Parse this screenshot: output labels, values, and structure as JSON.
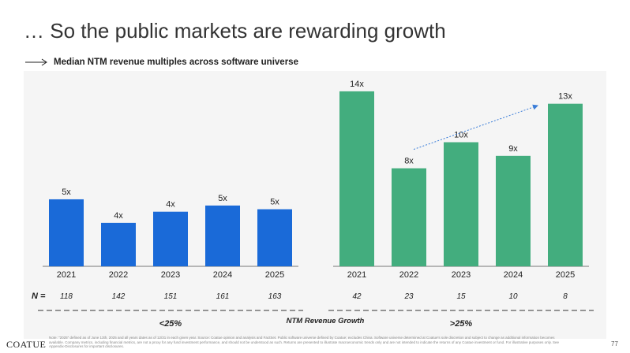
{
  "title": "… So the public markets are rewarding growth",
  "subtitle": "Median NTM revenue multiples across software universe",
  "brand": "COATUE",
  "page_number": "77",
  "footnote": "Note: \"2025\" defined as of June 13th, 2025 and all years dates as of 12/31 in each given year. Source: Coatue opinion and analysis and FactSet. Public software universe defined by Coatue; excludes China. Software universe determined at Coatue's sole discretion and subject to change as additional information becomes available. Company metrics, including financial metrics, are not a proxy for any fund investment performance, and should not be understood as such. Returns are presented to illustrate macroeconomic trends only and are not intended to indicate the returns of any Coatue investment or fund. For illustrative purposes only. See Appendix-Disclosures for important disclosures.",
  "colors": {
    "low_growth": "#1a6ad8",
    "high_growth": "#43ad7e",
    "trend_arrow": "#3b7dd8"
  },
  "chart_data": {
    "type": "bar",
    "title": "Median NTM revenue multiples across software universe",
    "xlabel": "NTM Revenue Growth",
    "ylabel": "",
    "ylim": [
      0,
      15
    ],
    "n_label": "N =",
    "series": [
      {
        "name": "<25%",
        "categories": [
          "2021",
          "2022",
          "2023",
          "2024",
          "2025"
        ],
        "values": [
          5.4,
          3.5,
          4.4,
          4.9,
          4.6
        ],
        "labels": [
          "5x",
          "4x",
          "4x",
          "5x",
          "5x"
        ],
        "n": [
          "118",
          "142",
          "151",
          "161",
          "163"
        ],
        "color": "#1a6ad8"
      },
      {
        "name": ">25%",
        "categories": [
          "2021",
          "2022",
          "2023",
          "2024",
          "2025"
        ],
        "values": [
          14.1,
          7.9,
          10.0,
          8.9,
          13.1
        ],
        "labels": [
          "14x",
          "8x",
          "10x",
          "9x",
          "13x"
        ],
        "n": [
          "42",
          "23",
          "15",
          "10",
          "8"
        ],
        "color": "#43ad7e"
      }
    ],
    "annotations": [
      "trend arrow from 2022 to 2025 in >25% group"
    ]
  }
}
